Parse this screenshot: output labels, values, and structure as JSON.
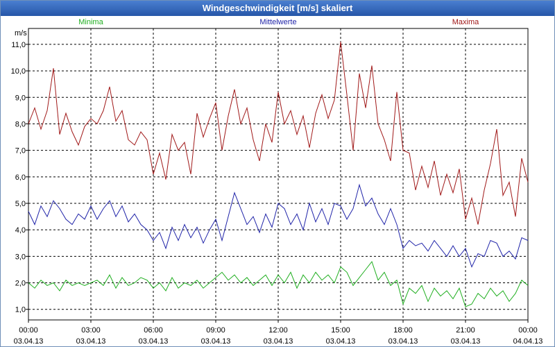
{
  "window": {
    "title": "Windgeschwindigkeit [m/s] skaliert"
  },
  "colors": {
    "min": "#1fae1f",
    "mean": "#1f23a8",
    "max": "#a01818",
    "grid": "#000000",
    "background": "#ffffff"
  },
  "chart_data": {
    "type": "line",
    "title": "Windgeschwindigkeit [m/s] skaliert",
    "ylabel": "m/s",
    "ylim": [
      0.6,
      11.6
    ],
    "yticks": [
      "11,0",
      "10,0",
      "9,0",
      "8,0",
      "7,0",
      "6,0",
      "5,0",
      "4,0",
      "3,0",
      "2,0",
      "1,0"
    ],
    "xticks": [
      {
        "time": "00:00",
        "date": "03.04.13"
      },
      {
        "time": "03:00",
        "date": "03.04.13"
      },
      {
        "time": "06:00",
        "date": "03.04.13"
      },
      {
        "time": "09:00",
        "date": "03.04.13"
      },
      {
        "time": "12:00",
        "date": "03.04.13"
      },
      {
        "time": "15:00",
        "date": "03.04.13"
      },
      {
        "time": "18:00",
        "date": "03.04.13"
      },
      {
        "time": "21:00",
        "date": "03.04.13"
      },
      {
        "time": "00:00",
        "date": "04.04.13"
      }
    ],
    "grid": true,
    "legend_position": "top",
    "series": [
      {
        "name": "Minima",
        "color": "#1fae1f",
        "points": [
          [
            0,
            2.0
          ],
          [
            0.3,
            1.8
          ],
          [
            0.6,
            2.1
          ],
          [
            0.9,
            1.9
          ],
          [
            1.2,
            2.0
          ],
          [
            1.5,
            1.7
          ],
          [
            1.8,
            2.1
          ],
          [
            2.1,
            1.9
          ],
          [
            2.4,
            2.0
          ],
          [
            2.7,
            1.9
          ],
          [
            3.0,
            2.0
          ],
          [
            3.3,
            2.1
          ],
          [
            3.6,
            1.9
          ],
          [
            3.9,
            2.3
          ],
          [
            4.2,
            1.8
          ],
          [
            4.5,
            2.2
          ],
          [
            4.8,
            1.9
          ],
          [
            5.1,
            2.0
          ],
          [
            5.4,
            2.2
          ],
          [
            5.7,
            2.1
          ],
          [
            6.0,
            1.8
          ],
          [
            6.3,
            2.0
          ],
          [
            6.6,
            1.7
          ],
          [
            6.9,
            2.2
          ],
          [
            7.2,
            1.8
          ],
          [
            7.5,
            2.0
          ],
          [
            7.8,
            1.9
          ],
          [
            8.1,
            2.1
          ],
          [
            8.4,
            1.8
          ],
          [
            8.7,
            2.0
          ],
          [
            9.0,
            2.2
          ],
          [
            9.3,
            2.4
          ],
          [
            9.6,
            2.1
          ],
          [
            9.9,
            2.3
          ],
          [
            10.2,
            2.0
          ],
          [
            10.5,
            2.2
          ],
          [
            10.8,
            1.9
          ],
          [
            11.1,
            2.1
          ],
          [
            11.4,
            2.3
          ],
          [
            11.7,
            1.9
          ],
          [
            12.0,
            2.3
          ],
          [
            12.3,
            2.0
          ],
          [
            12.6,
            2.4
          ],
          [
            12.9,
            1.8
          ],
          [
            13.2,
            2.3
          ],
          [
            13.5,
            2.0
          ],
          [
            13.8,
            2.4
          ],
          [
            14.1,
            2.1
          ],
          [
            14.4,
            2.3
          ],
          [
            14.7,
            2.0
          ],
          [
            15.0,
            2.6
          ],
          [
            15.3,
            2.4
          ],
          [
            15.6,
            1.9
          ],
          [
            15.9,
            2.2
          ],
          [
            16.2,
            2.5
          ],
          [
            16.5,
            2.8
          ],
          [
            16.8,
            2.1
          ],
          [
            17.1,
            2.4
          ],
          [
            17.4,
            1.9
          ],
          [
            17.7,
            2.1
          ],
          [
            18.0,
            1.2
          ],
          [
            18.3,
            1.8
          ],
          [
            18.6,
            1.6
          ],
          [
            18.9,
            1.9
          ],
          [
            19.2,
            1.3
          ],
          [
            19.5,
            1.8
          ],
          [
            19.8,
            1.5
          ],
          [
            20.1,
            1.7
          ],
          [
            20.4,
            1.4
          ],
          [
            20.7,
            1.8
          ],
          [
            21.0,
            1.1
          ],
          [
            21.3,
            1.2
          ],
          [
            21.6,
            1.6
          ],
          [
            21.9,
            1.4
          ],
          [
            22.2,
            1.8
          ],
          [
            22.5,
            1.5
          ],
          [
            22.8,
            1.7
          ],
          [
            23.1,
            1.3
          ],
          [
            23.4,
            1.6
          ],
          [
            23.7,
            2.1
          ],
          [
            24.0,
            1.9
          ]
        ]
      },
      {
        "name": "Mittelwerte",
        "color": "#1f23a8",
        "points": [
          [
            0,
            4.7
          ],
          [
            0.3,
            4.2
          ],
          [
            0.6,
            4.9
          ],
          [
            0.9,
            4.5
          ],
          [
            1.2,
            5.1
          ],
          [
            1.5,
            4.8
          ],
          [
            1.8,
            4.4
          ],
          [
            2.1,
            4.2
          ],
          [
            2.4,
            4.6
          ],
          [
            2.7,
            4.4
          ],
          [
            3.0,
            4.9
          ],
          [
            3.3,
            4.4
          ],
          [
            3.6,
            4.8
          ],
          [
            3.9,
            5.1
          ],
          [
            4.2,
            4.5
          ],
          [
            4.5,
            4.9
          ],
          [
            4.8,
            4.3
          ],
          [
            5.1,
            4.6
          ],
          [
            5.4,
            4.2
          ],
          [
            5.7,
            4.0
          ],
          [
            6.0,
            3.6
          ],
          [
            6.3,
            3.9
          ],
          [
            6.6,
            3.3
          ],
          [
            6.9,
            4.1
          ],
          [
            7.2,
            3.6
          ],
          [
            7.5,
            4.2
          ],
          [
            7.8,
            3.7
          ],
          [
            8.1,
            4.1
          ],
          [
            8.4,
            3.5
          ],
          [
            8.7,
            4.0
          ],
          [
            9.0,
            4.4
          ],
          [
            9.3,
            3.6
          ],
          [
            9.6,
            4.5
          ],
          [
            9.9,
            5.4
          ],
          [
            10.2,
            4.8
          ],
          [
            10.5,
            4.2
          ],
          [
            10.8,
            4.5
          ],
          [
            11.1,
            3.9
          ],
          [
            11.4,
            4.6
          ],
          [
            11.7,
            4.1
          ],
          [
            12.0,
            5.0
          ],
          [
            12.3,
            4.8
          ],
          [
            12.6,
            4.2
          ],
          [
            12.9,
            4.6
          ],
          [
            13.2,
            4.0
          ],
          [
            13.5,
            5.0
          ],
          [
            13.8,
            4.3
          ],
          [
            14.1,
            4.8
          ],
          [
            14.4,
            4.2
          ],
          [
            14.7,
            5.0
          ],
          [
            15.0,
            4.9
          ],
          [
            15.3,
            4.4
          ],
          [
            15.6,
            4.8
          ],
          [
            15.9,
            5.7
          ],
          [
            16.2,
            4.9
          ],
          [
            16.5,
            5.2
          ],
          [
            16.8,
            4.6
          ],
          [
            17.1,
            4.2
          ],
          [
            17.4,
            4.8
          ],
          [
            17.7,
            4.2
          ],
          [
            18.0,
            3.3
          ],
          [
            18.3,
            3.6
          ],
          [
            18.6,
            3.4
          ],
          [
            18.9,
            3.5
          ],
          [
            19.2,
            3.2
          ],
          [
            19.5,
            3.6
          ],
          [
            19.8,
            3.3
          ],
          [
            20.1,
            3.0
          ],
          [
            20.4,
            3.4
          ],
          [
            20.7,
            3.0
          ],
          [
            21.0,
            3.3
          ],
          [
            21.3,
            2.6
          ],
          [
            21.6,
            3.1
          ],
          [
            21.9,
            3.0
          ],
          [
            22.2,
            3.6
          ],
          [
            22.5,
            3.5
          ],
          [
            22.8,
            3.0
          ],
          [
            23.1,
            3.2
          ],
          [
            23.4,
            2.9
          ],
          [
            23.7,
            3.7
          ],
          [
            24.0,
            3.6
          ]
        ]
      },
      {
        "name": "Maxima",
        "color": "#a01818",
        "points": [
          [
            0,
            8.0
          ],
          [
            0.3,
            8.6
          ],
          [
            0.6,
            7.8
          ],
          [
            0.9,
            8.5
          ],
          [
            1.2,
            10.1
          ],
          [
            1.5,
            7.6
          ],
          [
            1.8,
            8.4
          ],
          [
            2.1,
            7.7
          ],
          [
            2.4,
            7.2
          ],
          [
            2.7,
            7.9
          ],
          [
            3.0,
            8.2
          ],
          [
            3.3,
            8.0
          ],
          [
            3.6,
            8.5
          ],
          [
            3.9,
            9.4
          ],
          [
            4.2,
            8.1
          ],
          [
            4.5,
            8.5
          ],
          [
            4.8,
            7.4
          ],
          [
            5.1,
            7.2
          ],
          [
            5.4,
            7.7
          ],
          [
            5.7,
            7.4
          ],
          [
            6.0,
            6.1
          ],
          [
            6.3,
            6.9
          ],
          [
            6.6,
            5.9
          ],
          [
            6.9,
            7.6
          ],
          [
            7.2,
            7.0
          ],
          [
            7.5,
            7.3
          ],
          [
            7.8,
            6.1
          ],
          [
            8.1,
            8.4
          ],
          [
            8.4,
            7.5
          ],
          [
            8.7,
            8.2
          ],
          [
            9.0,
            8.8
          ],
          [
            9.3,
            7.0
          ],
          [
            9.6,
            8.3
          ],
          [
            9.9,
            9.3
          ],
          [
            10.2,
            8.0
          ],
          [
            10.5,
            8.6
          ],
          [
            10.8,
            7.4
          ],
          [
            11.1,
            6.6
          ],
          [
            11.4,
            8.0
          ],
          [
            11.7,
            7.3
          ],
          [
            12.0,
            9.2
          ],
          [
            12.3,
            8.0
          ],
          [
            12.6,
            8.5
          ],
          [
            12.9,
            7.6
          ],
          [
            13.2,
            8.3
          ],
          [
            13.5,
            7.1
          ],
          [
            13.8,
            8.4
          ],
          [
            14.1,
            9.1
          ],
          [
            14.4,
            8.2
          ],
          [
            14.7,
            8.9
          ],
          [
            15.0,
            11.1
          ],
          [
            15.3,
            9.1
          ],
          [
            15.6,
            7.0
          ],
          [
            15.9,
            9.9
          ],
          [
            16.2,
            8.6
          ],
          [
            16.5,
            10.2
          ],
          [
            16.8,
            8.0
          ],
          [
            17.1,
            7.4
          ],
          [
            17.4,
            6.6
          ],
          [
            17.7,
            9.2
          ],
          [
            18.0,
            7.0
          ],
          [
            18.3,
            6.9
          ],
          [
            18.6,
            5.5
          ],
          [
            18.9,
            6.4
          ],
          [
            19.2,
            5.6
          ],
          [
            19.5,
            6.6
          ],
          [
            19.8,
            5.3
          ],
          [
            20.1,
            6.1
          ],
          [
            20.4,
            5.4
          ],
          [
            20.7,
            6.3
          ],
          [
            21.0,
            4.4
          ],
          [
            21.3,
            5.2
          ],
          [
            21.6,
            4.2
          ],
          [
            21.9,
            5.5
          ],
          [
            22.2,
            6.5
          ],
          [
            22.5,
            7.8
          ],
          [
            22.8,
            5.3
          ],
          [
            23.1,
            5.8
          ],
          [
            23.4,
            4.5
          ],
          [
            23.7,
            6.7
          ],
          [
            24.0,
            5.8
          ]
        ]
      }
    ]
  }
}
